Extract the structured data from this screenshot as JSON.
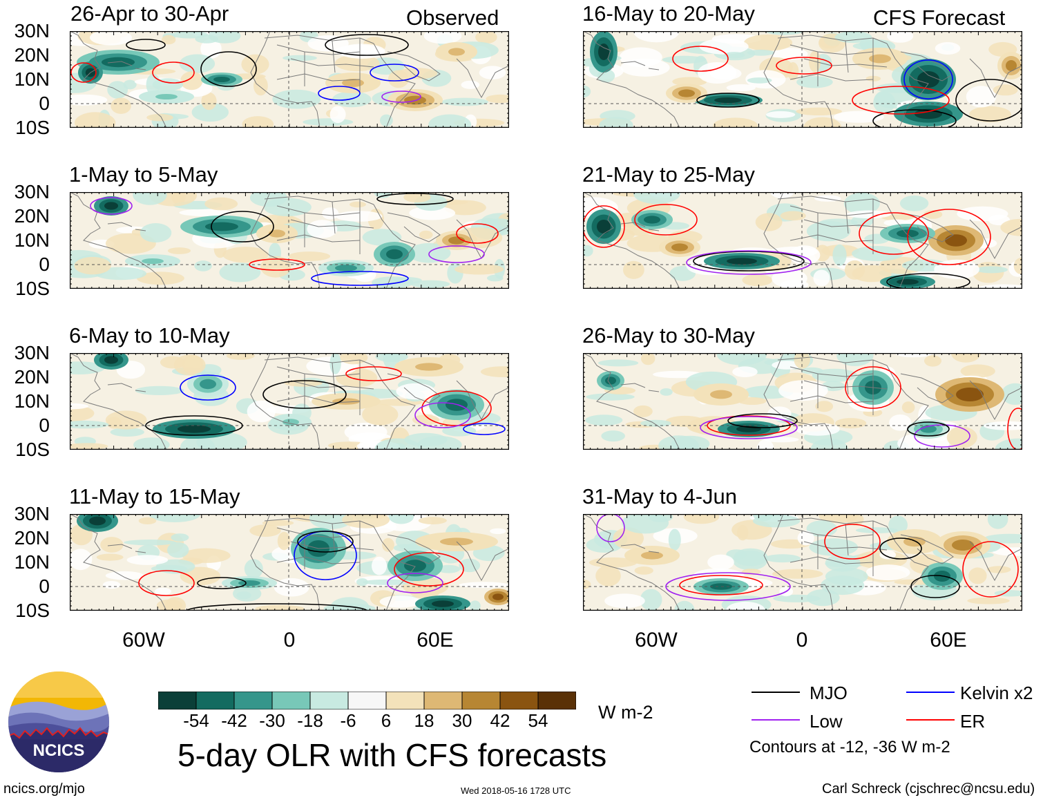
{
  "header": {
    "observed_label": "Observed",
    "forecast_label": "CFS Forecast"
  },
  "panels_left": [
    {
      "title": "26-Apr to 30-Apr"
    },
    {
      "title": "1-May to 5-May"
    },
    {
      "title": "6-May to 10-May"
    },
    {
      "title": "11-May to 15-May"
    }
  ],
  "panels_right": [
    {
      "title": "16-May to 20-May"
    },
    {
      "title": "21-May to 25-May"
    },
    {
      "title": "26-May to 30-May"
    },
    {
      "title": "31-May to 4-Jun"
    }
  ],
  "axes": {
    "lat_labels": [
      "30N",
      "20N",
      "10N",
      "0",
      "10S"
    ],
    "lon_labels": [
      "60W",
      "0",
      "60E"
    ]
  },
  "colorbar": {
    "ticks": [
      "-54",
      "-42",
      "-30",
      "-18",
      "-6",
      "6",
      "18",
      "30",
      "42",
      "54"
    ],
    "colors": [
      "#0a3f38",
      "#136b60",
      "#35968b",
      "#78c8b8",
      "#c8eae1",
      "#f7f7f7",
      "#f3e2ba",
      "#deb874",
      "#b78633",
      "#8a5410",
      "#5a3107"
    ],
    "units": "W m-2"
  },
  "main_title": "5-day OLR with CFS forecasts",
  "legend": {
    "items": [
      {
        "label": "MJO",
        "color": "#000000"
      },
      {
        "label": "Kelvin x2",
        "color": "#0000ff"
      },
      {
        "label": "Low",
        "color": "#a020f0"
      },
      {
        "label": "ER",
        "color": "#ff0000"
      }
    ],
    "contour_note": "Contours at -12, -36 W m-2"
  },
  "logo": {
    "text": "NCICS"
  },
  "footer": {
    "website": "ncics.org/mjo",
    "timestamp": "Wed 2018-05-16 1728 UTC",
    "author": "Carl Schreck (cjschrec@ncsu.edu)"
  }
}
